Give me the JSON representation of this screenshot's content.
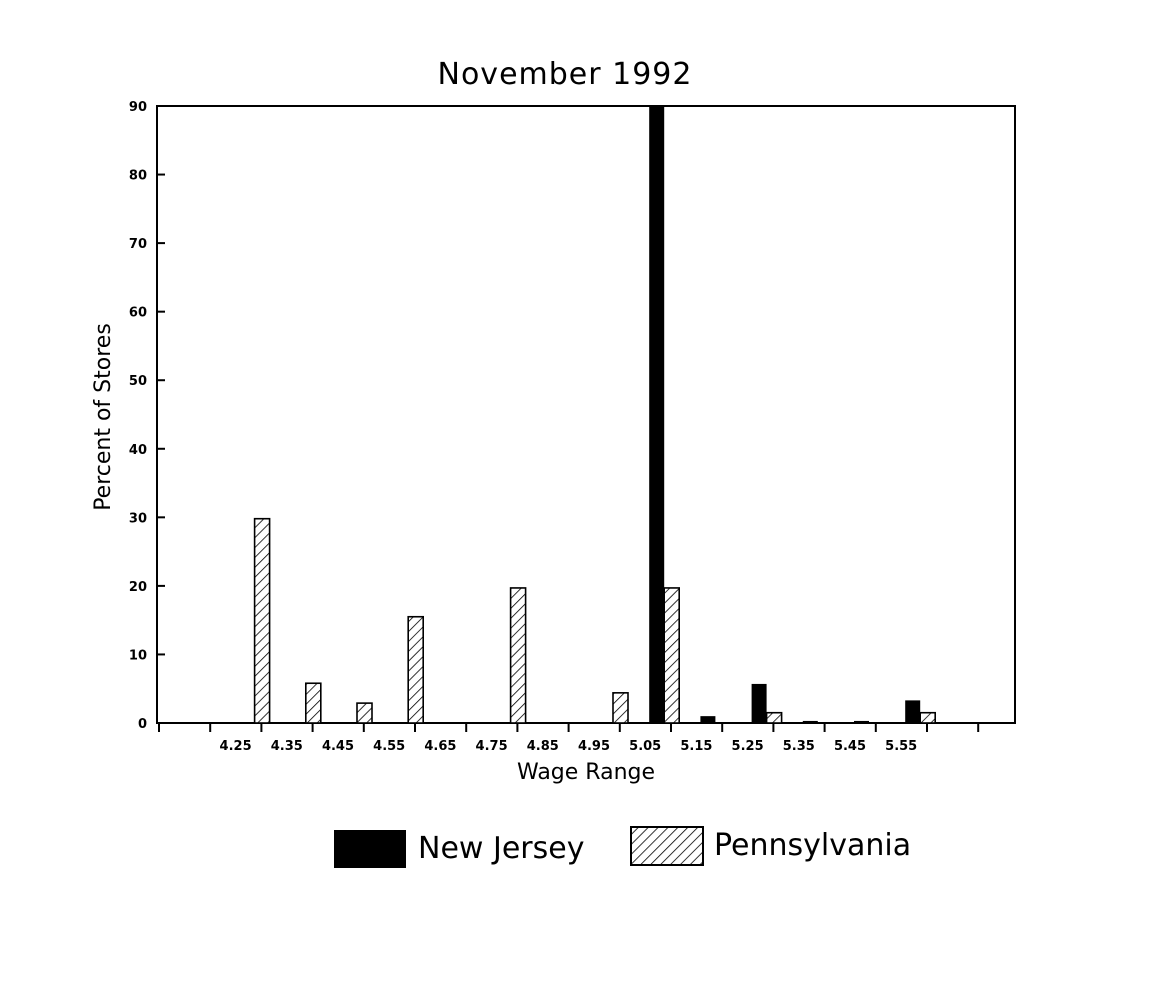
{
  "chart_data": {
    "type": "bar",
    "title": "November 1992",
    "xlabel": "Wage Range",
    "ylabel": "Percent of Stores",
    "ylim": [
      0,
      90
    ],
    "yticks": [
      0,
      10,
      20,
      30,
      40,
      50,
      60,
      70,
      80,
      90
    ],
    "categories": [
      "4.25",
      "4.35",
      "4.45",
      "4.55",
      "4.65",
      "4.75",
      "4.85",
      "4.95",
      "5.05",
      "5.15",
      "5.25",
      "5.35",
      "5.45",
      "5.55"
    ],
    "series": [
      {
        "name": "New Jersey",
        "fill": "solid",
        "color": "#000000",
        "values": [
          0,
          0,
          0,
          0,
          0,
          0,
          0,
          0,
          90,
          1,
          5.7,
          0.3,
          0.3,
          3.3
        ]
      },
      {
        "name": "Pennsylvania",
        "fill": "hatched",
        "color": "#000000",
        "values": [
          29.8,
          5.8,
          2.9,
          15.5,
          0,
          19.7,
          0,
          4.4,
          19.7,
          0,
          1.5,
          0,
          0,
          1.5
        ]
      }
    ],
    "grid": false,
    "legend_position": "bottom-center"
  }
}
